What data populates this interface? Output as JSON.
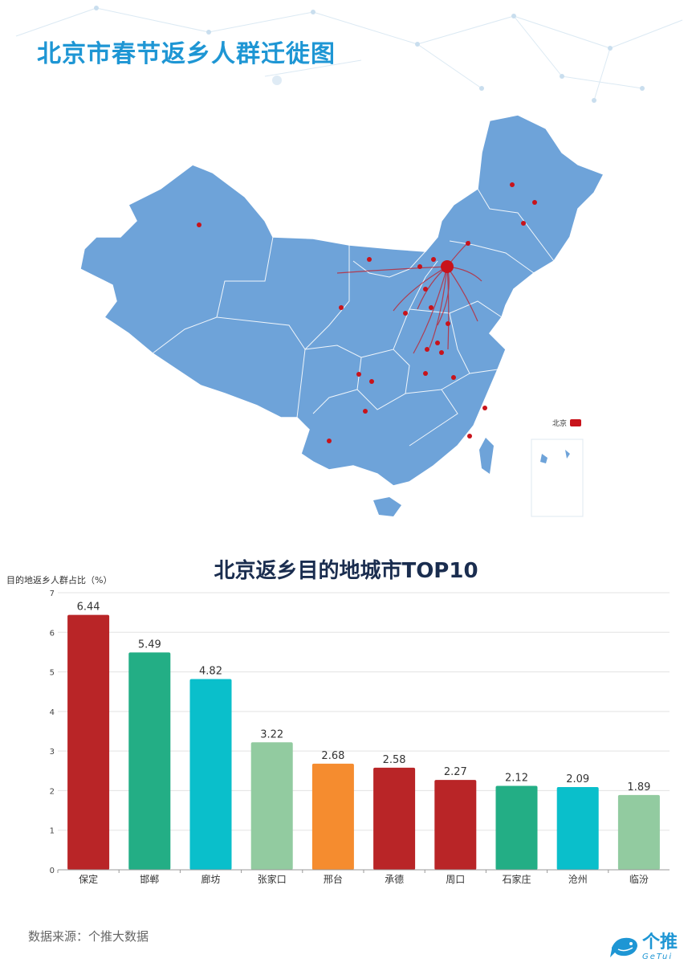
{
  "header": {
    "title": "北京市春节返乡人群迁徙图"
  },
  "map": {
    "legend_label": "北京",
    "colors": {
      "land": "#6ea3d9",
      "border": "#ffffff",
      "flow": "#c8131b"
    }
  },
  "chart_data": {
    "type": "bar",
    "title": "北京返乡目的地城市TOP10",
    "xlabel": "",
    "ylabel": "目的地返乡人群占比（%）",
    "categories": [
      "保定",
      "邯郸",
      "廊坊",
      "张家口",
      "邢台",
      "承德",
      "周口",
      "石家庄",
      "沧州",
      "临汾"
    ],
    "values": [
      6.44,
      5.49,
      4.82,
      3.22,
      2.68,
      2.58,
      2.27,
      2.12,
      2.09,
      1.89
    ],
    "value_labels": [
      "6.44",
      "5.49",
      "4.82",
      "3.22",
      "2.68",
      "2.58",
      "2.27",
      "2.12",
      "2.09",
      "1.89"
    ],
    "colors": [
      "#b92527",
      "#23ae85",
      "#0abfcb",
      "#92cba0",
      "#f58c2f",
      "#b92527",
      "#b92527",
      "#23ae85",
      "#0abfcb",
      "#92cba0"
    ],
    "ylim": [
      0,
      7
    ],
    "yticks": [
      "0",
      "1",
      "2",
      "3",
      "4",
      "5",
      "6",
      "7"
    ],
    "grid": true
  },
  "footer": {
    "source": "数据来源：个推大数据",
    "logo_name": "个推",
    "logo_sub": "GeTui"
  }
}
